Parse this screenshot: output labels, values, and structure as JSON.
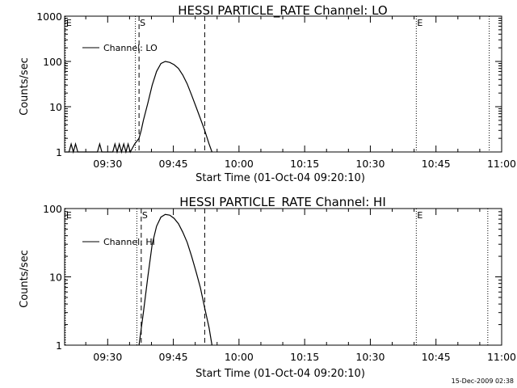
{
  "footer": {
    "timestamp": "15-Dec-2009 02:38"
  },
  "chart_data": [
    {
      "type": "line",
      "title": "HESSI PARTICLE_RATE Channel: LO",
      "xlabel": "Start Time (01-Oct-04 09:20:10)",
      "ylabel": "Counts/sec",
      "yscale": "log",
      "xlim": [
        "09:20:10",
        "11:00:00"
      ],
      "ylim": [
        1,
        1000
      ],
      "x_ticks": [
        "09:30",
        "09:45",
        "10:00",
        "10:15",
        "10:30",
        "10:45",
        "11:00"
      ],
      "y_ticks": [
        1,
        10,
        100,
        1000
      ],
      "y_tick_labels": [
        "1",
        "10",
        "100",
        "1000"
      ],
      "legend": {
        "label": "Channel: LO",
        "position": "top-left"
      },
      "markers": [
        {
          "label": "E",
          "time": "09:20:20",
          "style": "dotted"
        },
        {
          "label": "",
          "time": "09:36:20",
          "style": "dotted"
        },
        {
          "label": "S",
          "time": "09:37:10",
          "style": "dashed"
        },
        {
          "label": "",
          "time": "09:52:10",
          "style": "dashed"
        },
        {
          "label": "E",
          "time": "10:40:30",
          "style": "dotted"
        },
        {
          "label": "",
          "time": "10:57:10",
          "style": "dotted"
        }
      ],
      "series": [
        {
          "name": "Channel: LO",
          "x": [
            "09:20:10",
            "09:21:10",
            "09:21:40",
            "09:22:10",
            "09:22:40",
            "09:23:10",
            "09:23:40",
            "09:24:10",
            "09:26:10",
            "09:27:40",
            "09:28:10",
            "09:28:40",
            "09:29:10",
            "09:30:10",
            "09:31:10",
            "09:31:40",
            "09:32:10",
            "09:32:40",
            "09:33:10",
            "09:33:40",
            "09:34:10",
            "09:34:40",
            "09:35:10",
            "09:36:10",
            "09:37:10",
            "09:37:40",
            "09:38:10",
            "09:39:10",
            "09:40:10",
            "09:41:10",
            "09:42:10",
            "09:43:10",
            "09:44:10",
            "09:45:10",
            "09:46:10",
            "09:47:10",
            "09:48:10",
            "09:49:10",
            "09:50:10",
            "09:51:10",
            "09:52:10",
            "09:53:10",
            "09:53:50"
          ],
          "y": [
            1,
            1,
            1.5,
            1,
            1.5,
            1,
            1,
            1,
            1,
            1,
            1.5,
            1,
            1,
            1,
            1,
            1.5,
            1,
            1.5,
            1,
            1.5,
            1,
            1.5,
            1,
            1.5,
            2,
            3,
            5,
            12,
            30,
            60,
            90,
            100,
            95,
            85,
            70,
            50,
            32,
            18,
            10,
            5.5,
            3,
            1.5,
            1
          ]
        }
      ]
    },
    {
      "type": "line",
      "title": "HESSI PARTICLE_RATE Channel: HI",
      "xlabel": "Start Time (01-Oct-04 09:20:10)",
      "ylabel": "Counts/sec",
      "yscale": "log",
      "xlim": [
        "09:20:10",
        "11:00:00"
      ],
      "ylim": [
        1,
        100
      ],
      "x_ticks": [
        "09:30",
        "09:45",
        "10:00",
        "10:15",
        "10:30",
        "10:45",
        "11:00"
      ],
      "y_ticks": [
        1,
        10,
        100
      ],
      "y_tick_labels": [
        "1",
        "10",
        "100"
      ],
      "legend": {
        "label": "Channel: HI",
        "position": "top-left"
      },
      "markers": [
        {
          "label": "E",
          "time": "09:20:20",
          "style": "dotted"
        },
        {
          "label": "",
          "time": "09:36:40",
          "style": "dotted"
        },
        {
          "label": "S",
          "time": "09:37:40",
          "style": "dashed"
        },
        {
          "label": "",
          "time": "09:52:10",
          "style": "dashed"
        },
        {
          "label": "E",
          "time": "10:40:30",
          "style": "dotted"
        },
        {
          "label": "",
          "time": "10:56:50",
          "style": "dotted"
        }
      ],
      "series": [
        {
          "name": "Channel: HI",
          "x": [
            "09:37:10",
            "09:38:10",
            "09:39:10",
            "09:40:10",
            "09:41:10",
            "09:42:10",
            "09:43:10",
            "09:44:10",
            "09:45:10",
            "09:46:10",
            "09:47:10",
            "09:48:10",
            "09:49:10",
            "09:50:10",
            "09:51:10",
            "09:52:10",
            "09:53:10",
            "09:53:50"
          ],
          "y": [
            1,
            3,
            10,
            30,
            55,
            75,
            82,
            80,
            72,
            60,
            45,
            32,
            20,
            12,
            7,
            3.5,
            1.8,
            1
          ]
        }
      ]
    }
  ]
}
